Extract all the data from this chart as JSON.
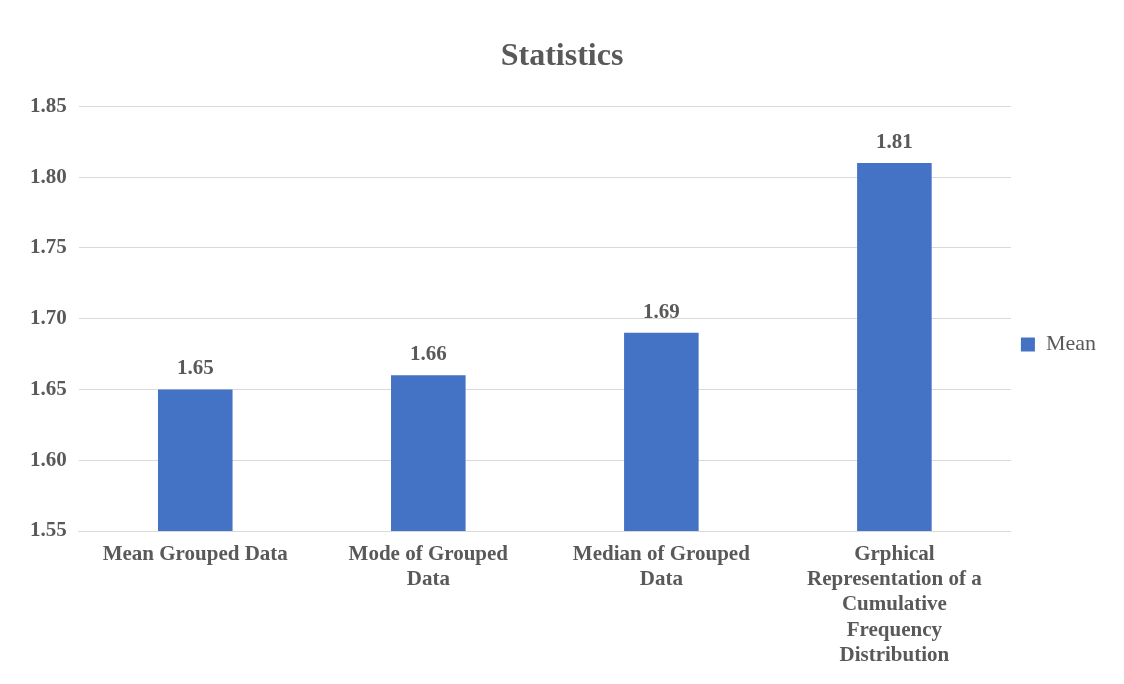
{
  "chart_data": {
    "type": "bar",
    "title": "Statistics",
    "categories": [
      "Mean Grouped Data",
      "Mode of Grouped Data",
      "Median of Grouped Data",
      "Grphical Representation of a Cumulative Frequency Distribution"
    ],
    "series": [
      {
        "name": "Mean",
        "color": "#4472c4",
        "values": [
          1.65,
          1.66,
          1.69,
          1.81
        ]
      }
    ],
    "ylim": [
      1.55,
      1.85
    ],
    "yticks": [
      {
        "value": 1.55,
        "label": "1.55"
      },
      {
        "value": 1.6,
        "label": "1.60"
      },
      {
        "value": 1.65,
        "label": "1.65"
      },
      {
        "value": 1.7,
        "label": "1.70"
      },
      {
        "value": 1.75,
        "label": "1.75"
      },
      {
        "value": 1.8,
        "label": "1.80"
      },
      {
        "value": 1.85,
        "label": "1.85"
      }
    ],
    "grid": "y",
    "legend": "right",
    "data_labels": true
  }
}
